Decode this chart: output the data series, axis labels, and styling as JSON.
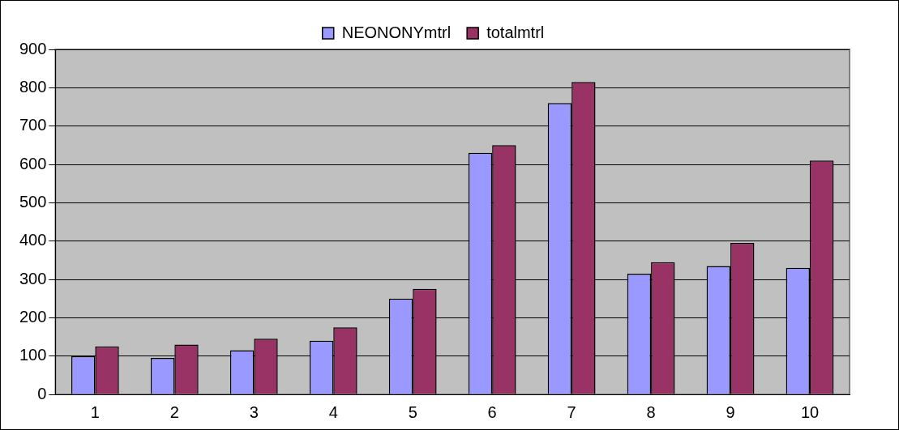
{
  "chart_data": {
    "type": "bar",
    "categories": [
      "1",
      "2",
      "3",
      "4",
      "5",
      "6",
      "7",
      "8",
      "9",
      "10"
    ],
    "series": [
      {
        "name": "NEONONYmtrl",
        "color": "#9999ff",
        "values": [
          100,
          95,
          115,
          140,
          250,
          630,
          760,
          315,
          335,
          330
        ]
      },
      {
        "name": "totalmtrl",
        "color": "#993366",
        "values": [
          125,
          130,
          145,
          175,
          275,
          650,
          815,
          345,
          395,
          610
        ]
      }
    ],
    "ylim": [
      0,
      900
    ],
    "yticks": [
      0,
      100,
      200,
      300,
      400,
      500,
      600,
      700,
      800,
      900
    ],
    "grid": "y",
    "legend": "top"
  }
}
